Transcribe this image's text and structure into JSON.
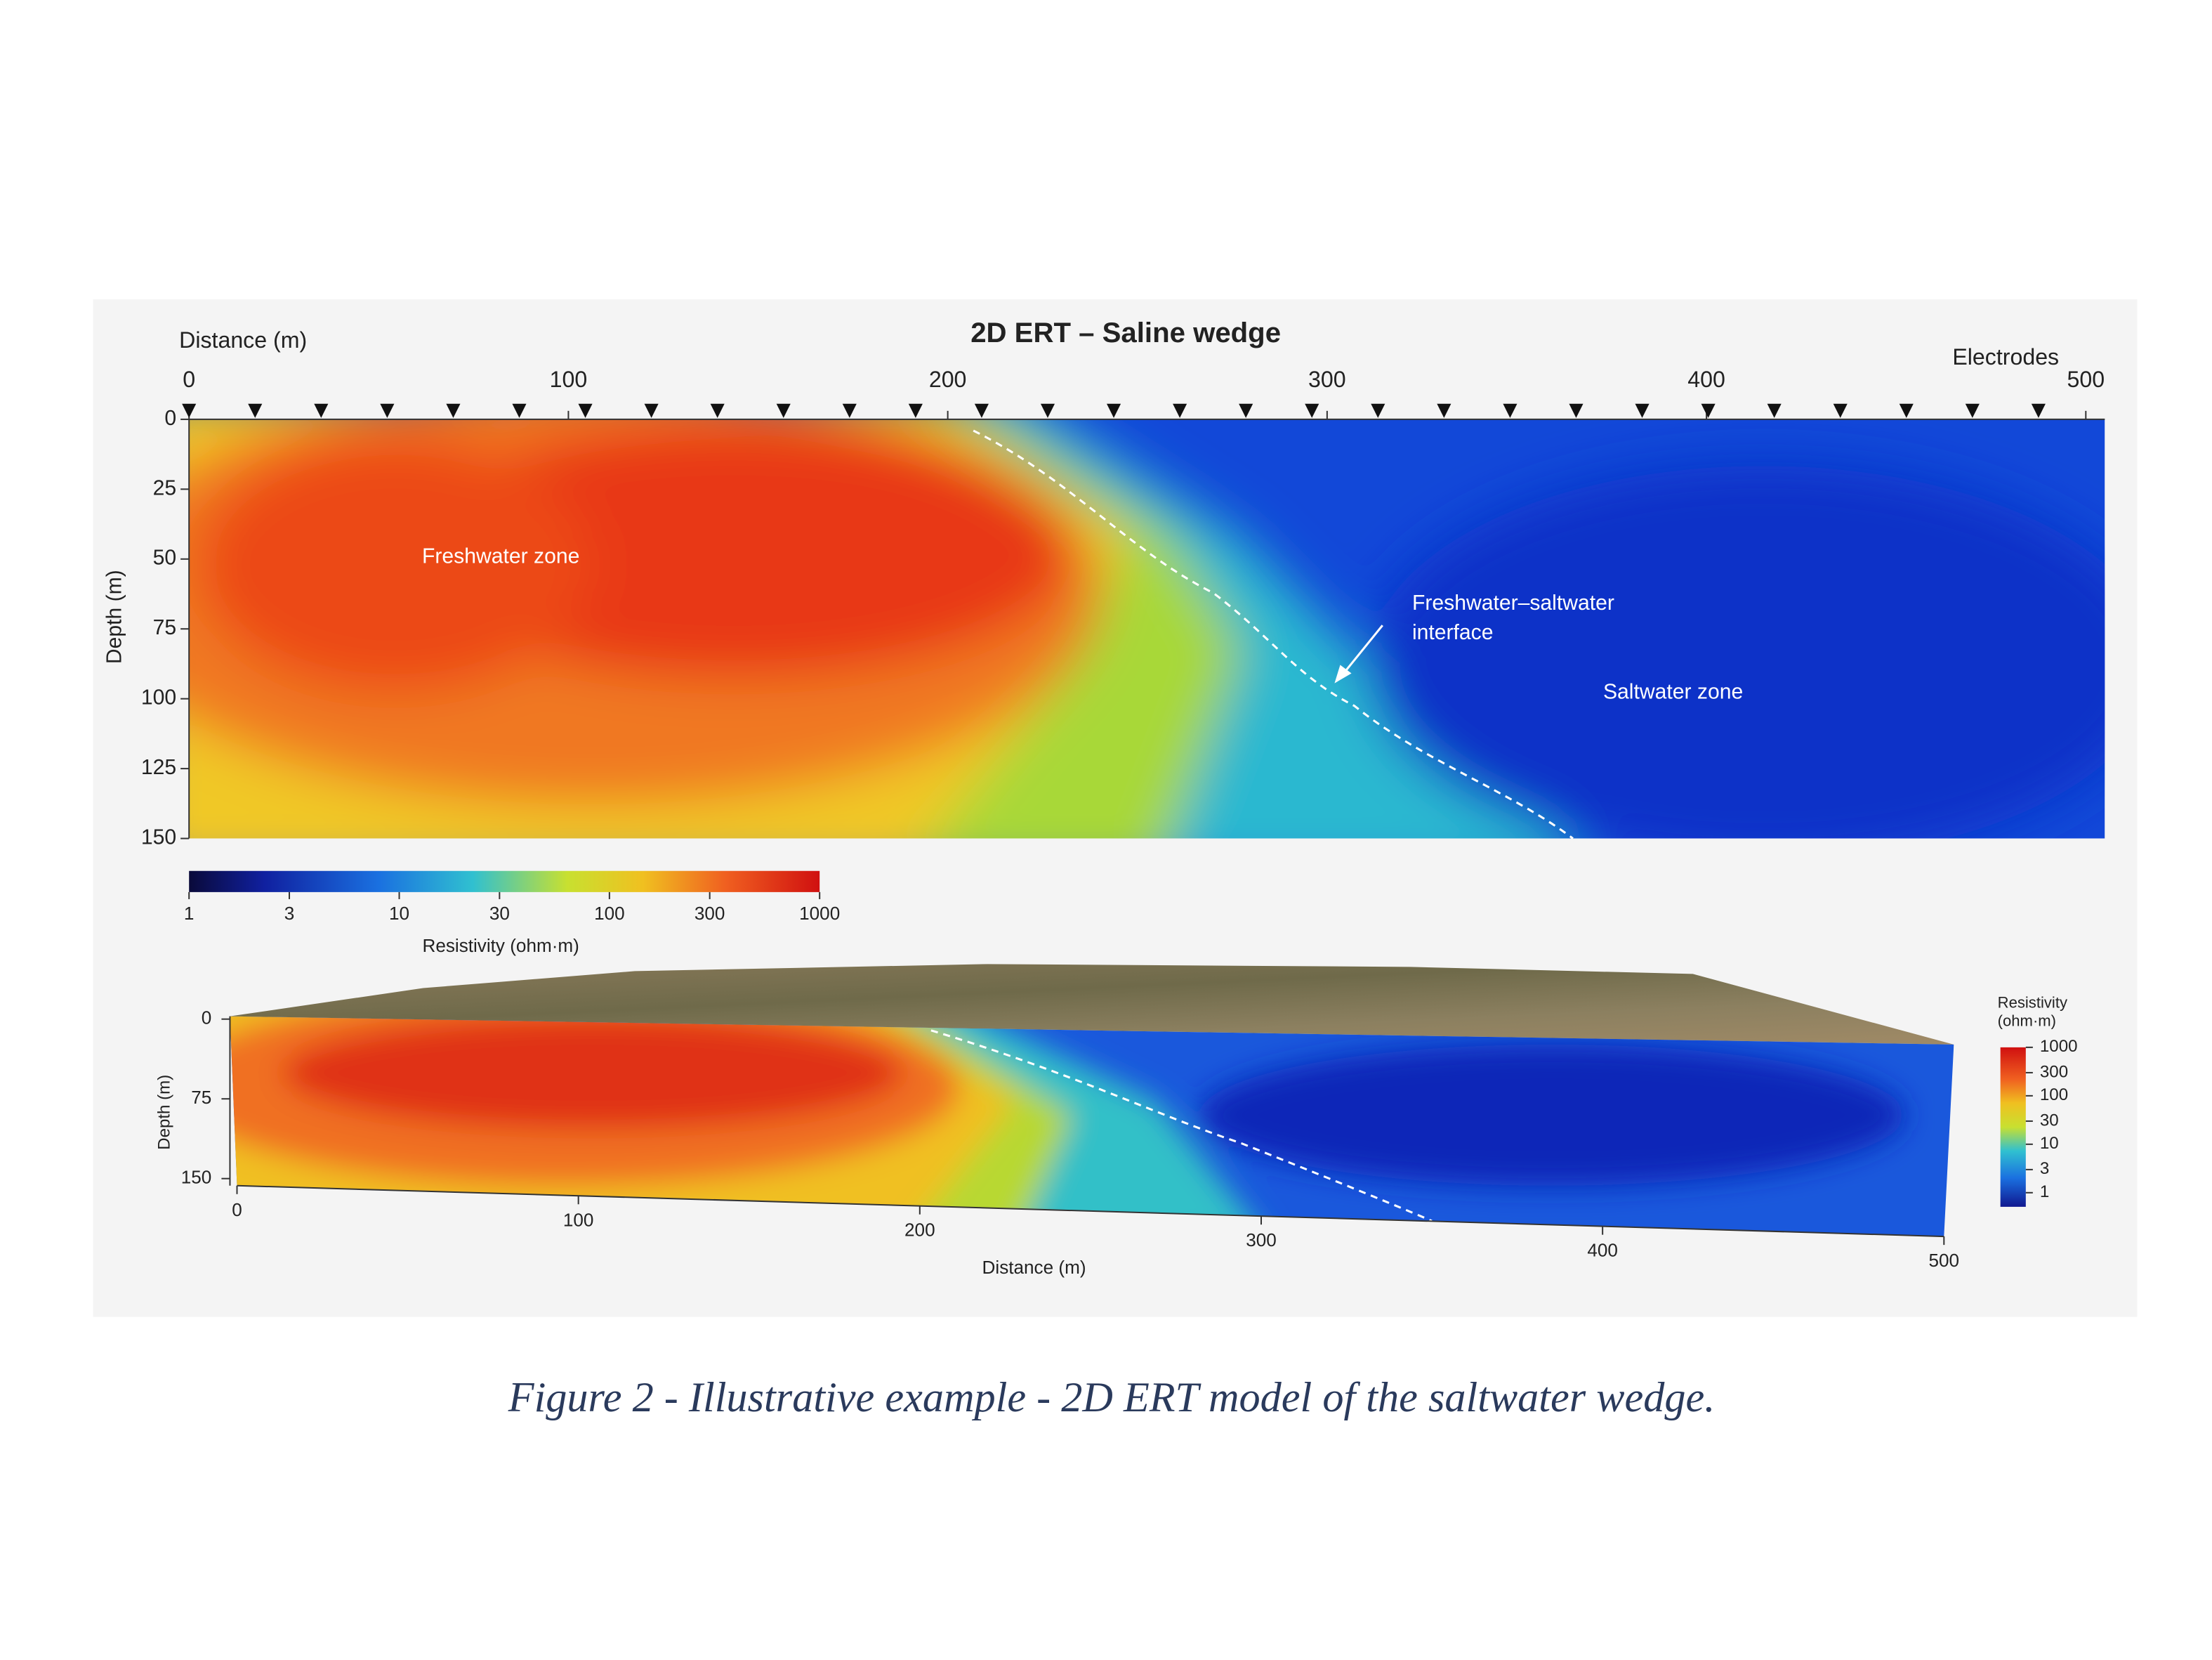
{
  "chart_data": [
    {
      "type": "heatmap",
      "title": "2D ERT – Saline wedge",
      "x_label": "Distance (m)",
      "y_label": "Depth (m)",
      "electrodes_label": "Electrodes",
      "xlim": [
        0,
        505
      ],
      "xticks": [
        0,
        100,
        200,
        300,
        400,
        500
      ],
      "ylim": [
        0,
        150
      ],
      "yticks": [
        0,
        25,
        50,
        75,
        100,
        125,
        150
      ],
      "annotations": {
        "freshwater": "Freshwater zone",
        "interface": [
          "Freshwater–saltwater",
          "interface"
        ],
        "saltwater": "Saltwater zone"
      },
      "colorbar": {
        "label": "Resistivity (ohm·m)",
        "scale": "log",
        "lim": [
          1,
          1000
        ],
        "ticks": [
          1,
          3,
          10,
          30,
          100,
          300,
          1000
        ]
      }
    },
    {
      "type": "heatmap3d",
      "x_label": "Distance (m)",
      "y_label": "Depth (m)",
      "xlim": [
        0,
        500
      ],
      "xticks": [
        0,
        100,
        200,
        300,
        400,
        500
      ],
      "ylim": [
        0,
        150
      ],
      "yticks": [
        0,
        75,
        150
      ],
      "colorbar": {
        "label": [
          "Resistivity",
          "(ohm·m)"
        ],
        "scale": "log",
        "lim": [
          1,
          1000
        ],
        "ticks": [
          1000,
          300,
          100,
          30,
          10,
          3,
          1
        ]
      }
    }
  ],
  "caption": "Figure 2 - Illustrative example - 2D ERT model of the saltwater wedge."
}
